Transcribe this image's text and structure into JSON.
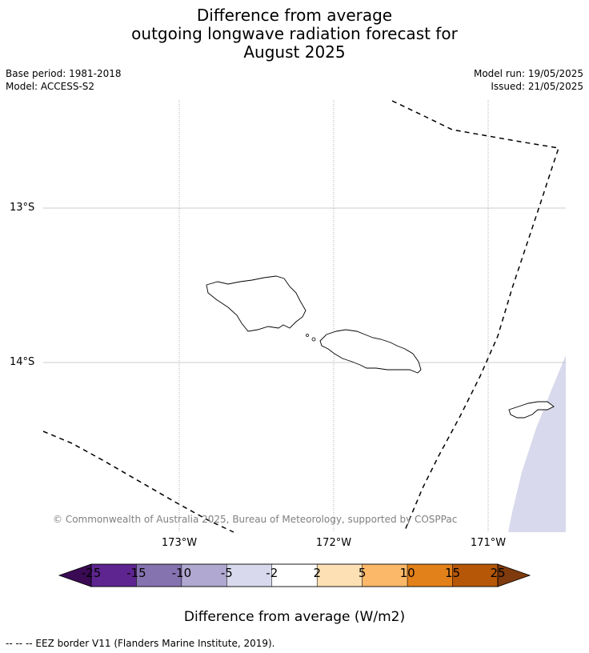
{
  "title_lines": [
    "Difference from average",
    "outgoing longwave radiation forecast for",
    "August 2025"
  ],
  "base_period": "Base period: 1981-2018",
  "model": "Model: ACCESS-S2",
  "model_run": "Model run: 19/05/2025",
  "issued": "Issued: 21/05/2025",
  "lat_labels": [
    "13°S",
    "14°S"
  ],
  "lon_labels": [
    "173°W",
    "172°W",
    "171°W"
  ],
  "copyright": "© Commonwealth of Australia 2025, Bureau of Meteorology, supported by COSPPac",
  "colorbar": {
    "title": "Difference from average (W/m2)",
    "ticks": [
      "-25",
      "-15",
      "-10",
      "-5",
      "-2",
      "2",
      "5",
      "10",
      "15",
      "25"
    ],
    "colors": [
      "#5e2590",
      "#8573b0",
      "#b0a8d0",
      "#d8d9ec",
      "#ffffff",
      "#fde0b4",
      "#fbb868",
      "#e2801a",
      "#b65708"
    ],
    "under_color": "#3a0a55",
    "over_color": "#7f3a0d"
  },
  "footer": "--  --  -- EEZ border V11 (Flanders Marine Institute, 2019).",
  "map_fill_color": "#d8d9ec"
}
